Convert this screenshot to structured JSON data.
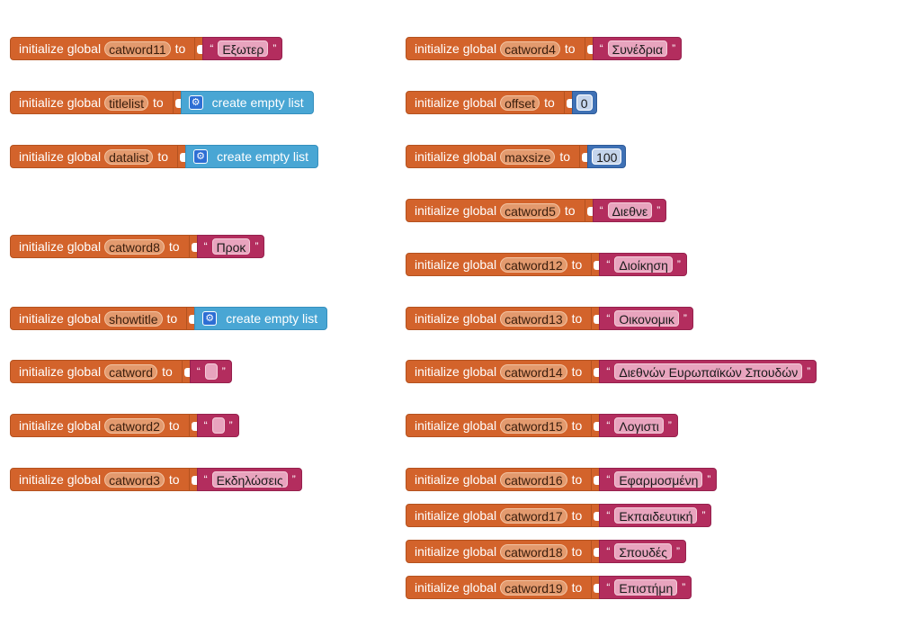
{
  "labels": {
    "initialize": "initialize global",
    "to": "to",
    "open_quote": "“",
    "close_quote": "”"
  },
  "icons": {
    "mutator": "gear-icon"
  },
  "colors": {
    "init_block": "#d3632b",
    "text_block": "#b32d5e",
    "list_block": "#49a6d4",
    "number_block": "#3f71b5"
  },
  "blocks": [
    {
      "variable": "catword11",
      "type": "text",
      "value": "Εξωτερ"
    },
    {
      "variable": "titlelist",
      "type": "list",
      "value": "create empty list"
    },
    {
      "variable": "datalist",
      "type": "list",
      "value": "create empty list"
    },
    {
      "variable": "catword8",
      "type": "text",
      "value": "Προκ"
    },
    {
      "variable": "showtitle",
      "type": "list",
      "value": "create empty list"
    },
    {
      "variable": "catword",
      "type": "text",
      "value": ""
    },
    {
      "variable": "catword2",
      "type": "text",
      "value": ""
    },
    {
      "variable": "catword3",
      "type": "text",
      "value": "Εκδηλώσεις"
    },
    {
      "variable": "catword4",
      "type": "text",
      "value": "Συνέδρια"
    },
    {
      "variable": "offset",
      "type": "number",
      "value": "0"
    },
    {
      "variable": "maxsize",
      "type": "number",
      "value": "100"
    },
    {
      "variable": "catword5",
      "type": "text",
      "value": "Διεθνε"
    },
    {
      "variable": "catword12",
      "type": "text",
      "value": "Διοίκηση"
    },
    {
      "variable": "catword13",
      "type": "text",
      "value": "Οικονομικ"
    },
    {
      "variable": "catword14",
      "type": "text",
      "value": "Διεθνών Ευρωπαϊκών Σπουδών"
    },
    {
      "variable": "catword15",
      "type": "text",
      "value": "Λογιστι"
    },
    {
      "variable": "catword16",
      "type": "text",
      "value": "Εφαρμοσμένη"
    },
    {
      "variable": "catword17",
      "type": "text",
      "value": "Εκπαιδευτική"
    },
    {
      "variable": "catword18",
      "type": "text",
      "value": "Σπουδές"
    },
    {
      "variable": "catword19",
      "type": "text",
      "value": "Επιστήμη"
    }
  ]
}
